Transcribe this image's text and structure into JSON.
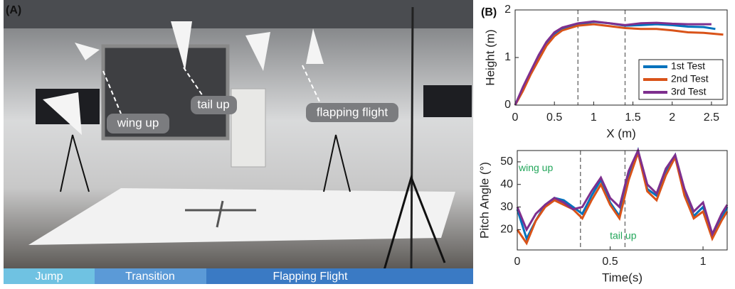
{
  "photo": {
    "panel_label": "(A)",
    "annotations": [
      "wing up",
      "tail up",
      "flapping flight"
    ],
    "phases": [
      "Jump",
      "Transition",
      "Flapping Flight"
    ]
  },
  "chart_data": [
    {
      "type": "line",
      "panel_label": "(B)",
      "x_label": "X (m)",
      "y_label": "Height (m)",
      "xlim": [
        0,
        2.7
      ],
      "ylim": [
        0,
        2
      ],
      "xticks": [
        0,
        0.5,
        1,
        1.5,
        2,
        2.5
      ],
      "yticks": [
        0,
        1,
        2
      ],
      "vlines": [
        0.8,
        1.4
      ],
      "legend": "lower right",
      "series": [
        {
          "name": "1st Test",
          "color": "#0072bd",
          "x": [
            0,
            0.1,
            0.2,
            0.3,
            0.4,
            0.5,
            0.6,
            0.8,
            1.0,
            1.2,
            1.4,
            1.6,
            1.8,
            2.0,
            2.2,
            2.4,
            2.55
          ],
          "values": [
            0,
            0.35,
            0.7,
            1.0,
            1.3,
            1.5,
            1.6,
            1.7,
            1.75,
            1.72,
            1.67,
            1.68,
            1.7,
            1.68,
            1.65,
            1.64,
            1.6
          ]
        },
        {
          "name": "2nd Test",
          "color": "#d95319",
          "x": [
            0,
            0.1,
            0.2,
            0.3,
            0.4,
            0.5,
            0.6,
            0.8,
            1.0,
            1.2,
            1.4,
            1.6,
            1.8,
            2.0,
            2.2,
            2.4,
            2.65
          ],
          "values": [
            0,
            0.3,
            0.65,
            0.95,
            1.25,
            1.45,
            1.57,
            1.67,
            1.7,
            1.66,
            1.62,
            1.6,
            1.6,
            1.57,
            1.53,
            1.52,
            1.48
          ]
        },
        {
          "name": "3rd Test",
          "color": "#7e2f8e",
          "x": [
            0,
            0.1,
            0.2,
            0.3,
            0.4,
            0.5,
            0.6,
            0.8,
            1.0,
            1.2,
            1.4,
            1.6,
            1.8,
            2.0,
            2.2,
            2.4,
            2.5
          ],
          "values": [
            0,
            0.38,
            0.72,
            1.05,
            1.33,
            1.53,
            1.63,
            1.72,
            1.76,
            1.72,
            1.68,
            1.72,
            1.73,
            1.71,
            1.7,
            1.7,
            1.7
          ]
        }
      ]
    },
    {
      "type": "line",
      "x_label": "Time(s)",
      "y_label": "Pitch Angle (°)",
      "xlim": [
        0,
        1.13
      ],
      "ylim": [
        11,
        55
      ],
      "xticks": [
        0,
        0.5,
        1
      ],
      "yticks": [
        20,
        30,
        40,
        50
      ],
      "vlines": [
        0.34,
        0.58
      ],
      "annotations": [
        {
          "text": "wing up",
          "x": 0.1,
          "y": 47
        },
        {
          "text": "tail up",
          "x": 0.57,
          "y": 17
        }
      ],
      "series": [
        {
          "name": "1st Test",
          "color": "#0072bd",
          "x": [
            0,
            0.05,
            0.1,
            0.15,
            0.2,
            0.25,
            0.3,
            0.35,
            0.4,
            0.45,
            0.5,
            0.55,
            0.6,
            0.65,
            0.7,
            0.75,
            0.8,
            0.85,
            0.9,
            0.95,
            1.0,
            1.05,
            1.1,
            1.13
          ],
          "values": [
            29,
            16,
            24,
            31,
            34,
            33,
            30,
            27,
            35,
            42,
            32,
            26,
            44,
            55,
            38,
            35,
            46,
            53,
            37,
            26,
            30,
            17,
            25,
            30
          ]
        },
        {
          "name": "2nd Test",
          "color": "#d95319",
          "x": [
            0,
            0.05,
            0.1,
            0.15,
            0.2,
            0.25,
            0.3,
            0.35,
            0.4,
            0.45,
            0.5,
            0.55,
            0.6,
            0.65,
            0.7,
            0.75,
            0.8,
            0.85,
            0.9,
            0.95,
            1.0,
            1.05,
            1.1,
            1.13
          ],
          "values": [
            20,
            14,
            24,
            30,
            33,
            31,
            29,
            25,
            33,
            40,
            31,
            25,
            42,
            54,
            37,
            33,
            44,
            52,
            35,
            25,
            28,
            16,
            24,
            28
          ]
        },
        {
          "name": "3rd Test",
          "color": "#7e2f8e",
          "x": [
            0,
            0.05,
            0.1,
            0.15,
            0.2,
            0.25,
            0.3,
            0.35,
            0.4,
            0.45,
            0.5,
            0.55,
            0.6,
            0.65,
            0.7,
            0.75,
            0.8,
            0.85,
            0.9,
            0.95,
            1.0,
            1.05,
            1.1,
            1.13
          ],
          "values": [
            30,
            20,
            27,
            31,
            34,
            32,
            29,
            30,
            37,
            43,
            34,
            30,
            46,
            55,
            40,
            36,
            47,
            53,
            38,
            28,
            32,
            18,
            27,
            31
          ]
        }
      ]
    }
  ]
}
